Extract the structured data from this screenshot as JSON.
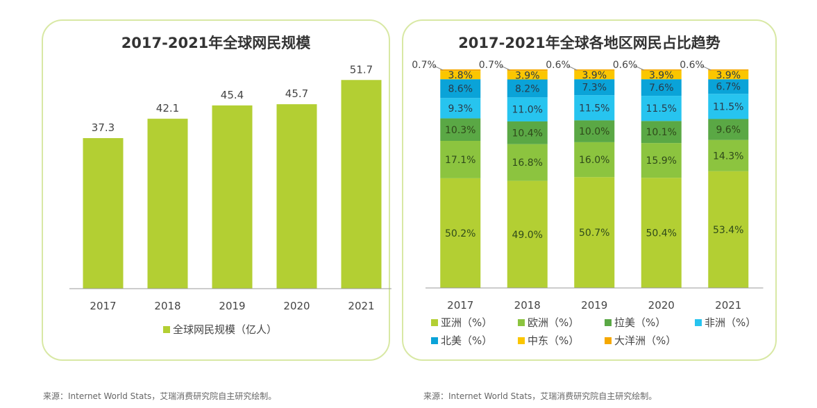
{
  "chart_data": [
    {
      "type": "bar",
      "title": "2017-2021年全球网民规模",
      "categories": [
        "2017",
        "2018",
        "2019",
        "2020",
        "2021"
      ],
      "series": [
        {
          "name": "全球网民规模（亿人）",
          "values": [
            37.3,
            42.1,
            45.4,
            45.7,
            51.7
          ],
          "labels": [
            "37.3",
            "42.1",
            "45.4",
            "45.7",
            "51.7"
          ],
          "color": "#b3cf33"
        }
      ],
      "ylim": [
        0,
        60
      ],
      "grid": false,
      "legend": "bottom"
    },
    {
      "type": "bar",
      "stacked": true,
      "title": "2017-2021年全球各地区网民占比趋势",
      "categories": [
        "2017",
        "2018",
        "2019",
        "2020",
        "2021"
      ],
      "series": [
        {
          "name": "亚洲（%）",
          "color": "#b3cf33",
          "values": [
            50.2,
            49.0,
            50.7,
            50.4,
            53.4
          ],
          "labels": [
            "50.2%",
            "49.0%",
            "50.7%",
            "50.4%",
            "53.4%"
          ]
        },
        {
          "name": "欧洲（%）",
          "color": "#8cc43f",
          "values": [
            17.1,
            16.8,
            16.0,
            15.9,
            14.3
          ],
          "labels": [
            "17.1%",
            "16.8%",
            "16.0%",
            "15.9%",
            "14.3%"
          ]
        },
        {
          "name": "拉美（%）",
          "color": "#5aa845",
          "values": [
            10.3,
            10.4,
            10.0,
            10.1,
            9.6
          ],
          "labels": [
            "10.3%",
            "10.4%",
            "10.0%",
            "10.1%",
            "9.6%"
          ]
        },
        {
          "name": "非洲（%）",
          "color": "#27c4ef",
          "values": [
            9.3,
            11.0,
            11.5,
            11.5,
            11.5
          ],
          "labels": [
            "9.3%",
            "11.0%",
            "11.5%",
            "11.5%",
            "11.5%"
          ]
        },
        {
          "name": "北美（%）",
          "color": "#0aa3d8",
          "values": [
            8.6,
            8.2,
            7.3,
            7.6,
            6.7
          ],
          "labels": [
            "8.6%",
            "8.2%",
            "7.3%",
            "7.6%",
            "6.7%"
          ]
        },
        {
          "name": "中东（%）",
          "color": "#fbc600",
          "values": [
            3.8,
            3.9,
            3.9,
            3.9,
            3.9
          ],
          "labels": [
            "3.8%",
            "3.9%",
            "3.9%",
            "3.9%",
            "3.9%"
          ]
        },
        {
          "name": "大洋洲（%）",
          "color": "#f5a800",
          "values": [
            0.7,
            0.7,
            0.6,
            0.6,
            0.6
          ],
          "labels": [
            "0.7%",
            "0.7%",
            "0.6%",
            "0.6%",
            "0.6%"
          ]
        }
      ],
      "ylim": [
        0,
        100
      ],
      "grid": false,
      "legend": "bottom"
    }
  ],
  "footer": {
    "source_left": "来源：Internet World Stats，艾瑞消费研究院自主研究绘制。",
    "source_right": "来源：Internet World Stats，艾瑞消费研究院自主研究绘制。"
  }
}
